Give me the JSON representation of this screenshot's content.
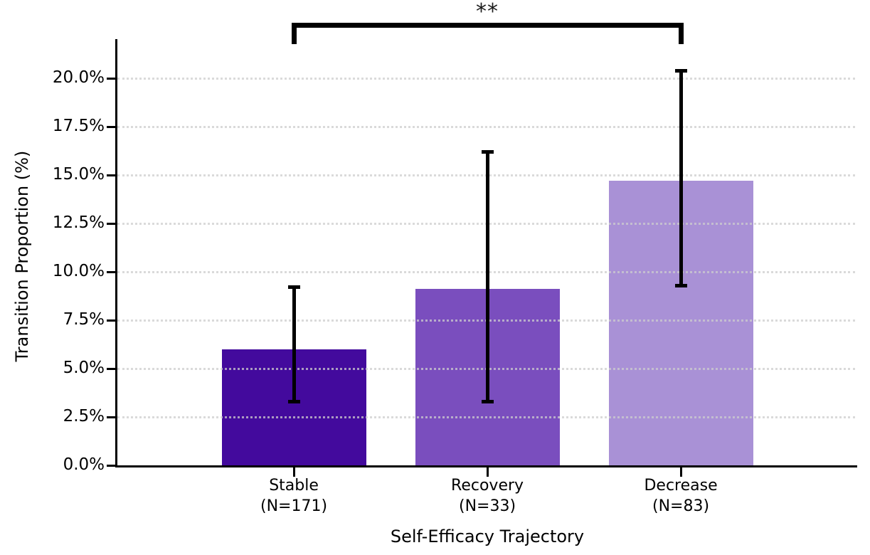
{
  "chart_data": {
    "type": "bar",
    "title": "",
    "xlabel": "Self-Efficacy Trajectory",
    "ylabel": "Transition Proportion (%)",
    "categories": [
      "Stable",
      "Recovery",
      "Decrease"
    ],
    "category_sublabels": [
      "(N=171)",
      "(N=33)",
      "(N=83)"
    ],
    "category_n": [
      171,
      33,
      83
    ],
    "values": [
      6.0,
      9.1,
      14.7
    ],
    "error_low": [
      3.3,
      3.3,
      9.3
    ],
    "error_high": [
      9.2,
      16.2,
      20.4
    ],
    "bar_colors": [
      "#430a9d",
      "#7a4ebe",
      "#a991d6"
    ],
    "error_color": "#000000",
    "ytick_values": [
      0,
      2.5,
      5,
      7.5,
      10,
      12.5,
      15,
      17.5,
      20
    ],
    "ytick_labels": [
      "0.0%",
      "2.5%",
      "5.0%",
      "7.5%",
      "10.0%",
      "12.5%",
      "15.0%",
      "17.5%",
      "20.0%"
    ],
    "ylim": [
      0,
      21.95
    ],
    "grid": "horizontal-dotted",
    "legend": "none",
    "significance": {
      "from_index": 0,
      "to_index": 2,
      "label": "**"
    }
  }
}
